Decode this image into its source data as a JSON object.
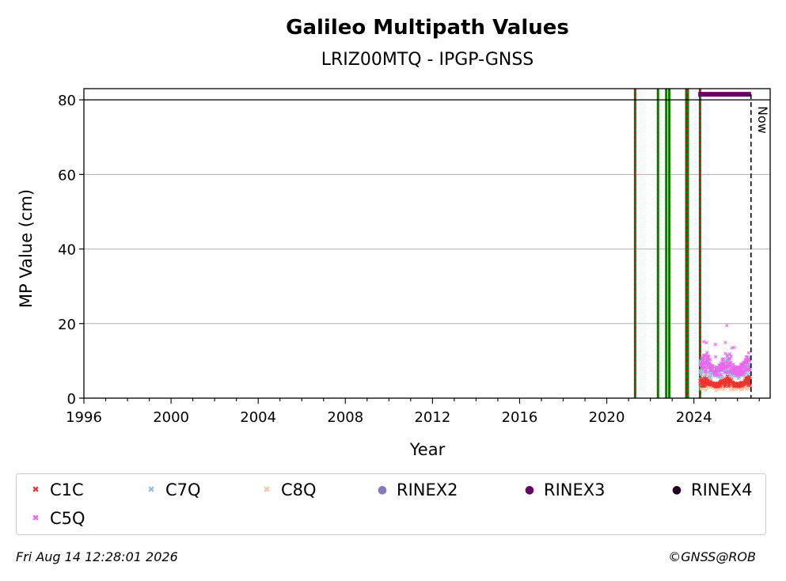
{
  "chart_data": {
    "type": "scatter",
    "title": "Galileo Multipath Values",
    "subtitle": "LRIZ00MTQ - IPGP-GNSS",
    "xlabel": "Year",
    "ylabel": "MP Value (cm)",
    "xlim": [
      1996,
      2027.5
    ],
    "ylim": [
      0,
      83
    ],
    "x_ticks": [
      1996,
      2000,
      2004,
      2008,
      2012,
      2016,
      2020,
      2024
    ],
    "y_ticks": [
      0,
      20,
      40,
      60,
      80
    ],
    "grid": "horizontal",
    "reference_line": 80,
    "now_label": "Now",
    "now_x": 2026.62,
    "rinex3_span": [
      2024.2,
      2026.62
    ],
    "rinex3_y": 81.5,
    "event_lines": [
      2021.3,
      2022.35,
      2022.73,
      2022.87,
      2023.65,
      2023.72,
      2024.28
    ],
    "series": [
      {
        "name": "C1C",
        "color": "#ee3333",
        "marker": "x",
        "typical": [
          3,
          6
        ]
      },
      {
        "name": "C7Q",
        "color": "#99bbe6",
        "marker": "x",
        "typical": [
          5,
          12
        ]
      },
      {
        "name": "C8Q",
        "color": "#f5c7a6",
        "marker": "x",
        "typical": [
          2,
          7
        ]
      },
      {
        "name": "RINEX2",
        "color": "#8877bb",
        "marker": "dot"
      },
      {
        "name": "RINEX3",
        "color": "#660066",
        "marker": "dot"
      },
      {
        "name": "RINEX4",
        "color": "#220022",
        "marker": "dot"
      },
      {
        "name": "C5Q",
        "color": "#ee66ee",
        "marker": "x",
        "typical": [
          6,
          13
        ]
      }
    ]
  },
  "footer": {
    "timestamp": "Fri Aug 14 12:28:01 2026",
    "copyright": "©GNSS@ROB"
  }
}
